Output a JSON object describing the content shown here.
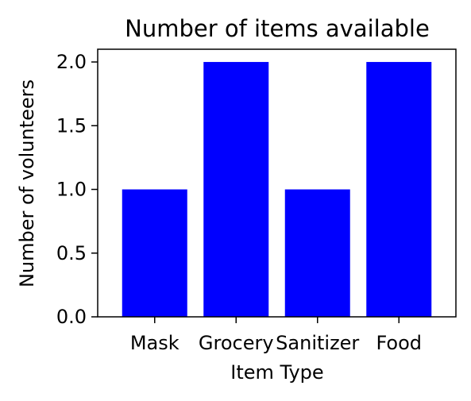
{
  "chart_data": {
    "type": "bar",
    "title": "Number of items available",
    "xlabel": "Item Type",
    "ylabel": "Number of volunteers",
    "categories": [
      "Mask",
      "Grocery",
      "Sanitizer",
      "Food"
    ],
    "values": [
      1,
      2,
      1,
      2
    ],
    "ylim": [
      0,
      2.1
    ],
    "yticks": [
      "0.0",
      "0.5",
      "1.0",
      "1.5",
      "2.0"
    ],
    "bar_color": "#0000ff",
    "grid": false,
    "legend": "none"
  }
}
